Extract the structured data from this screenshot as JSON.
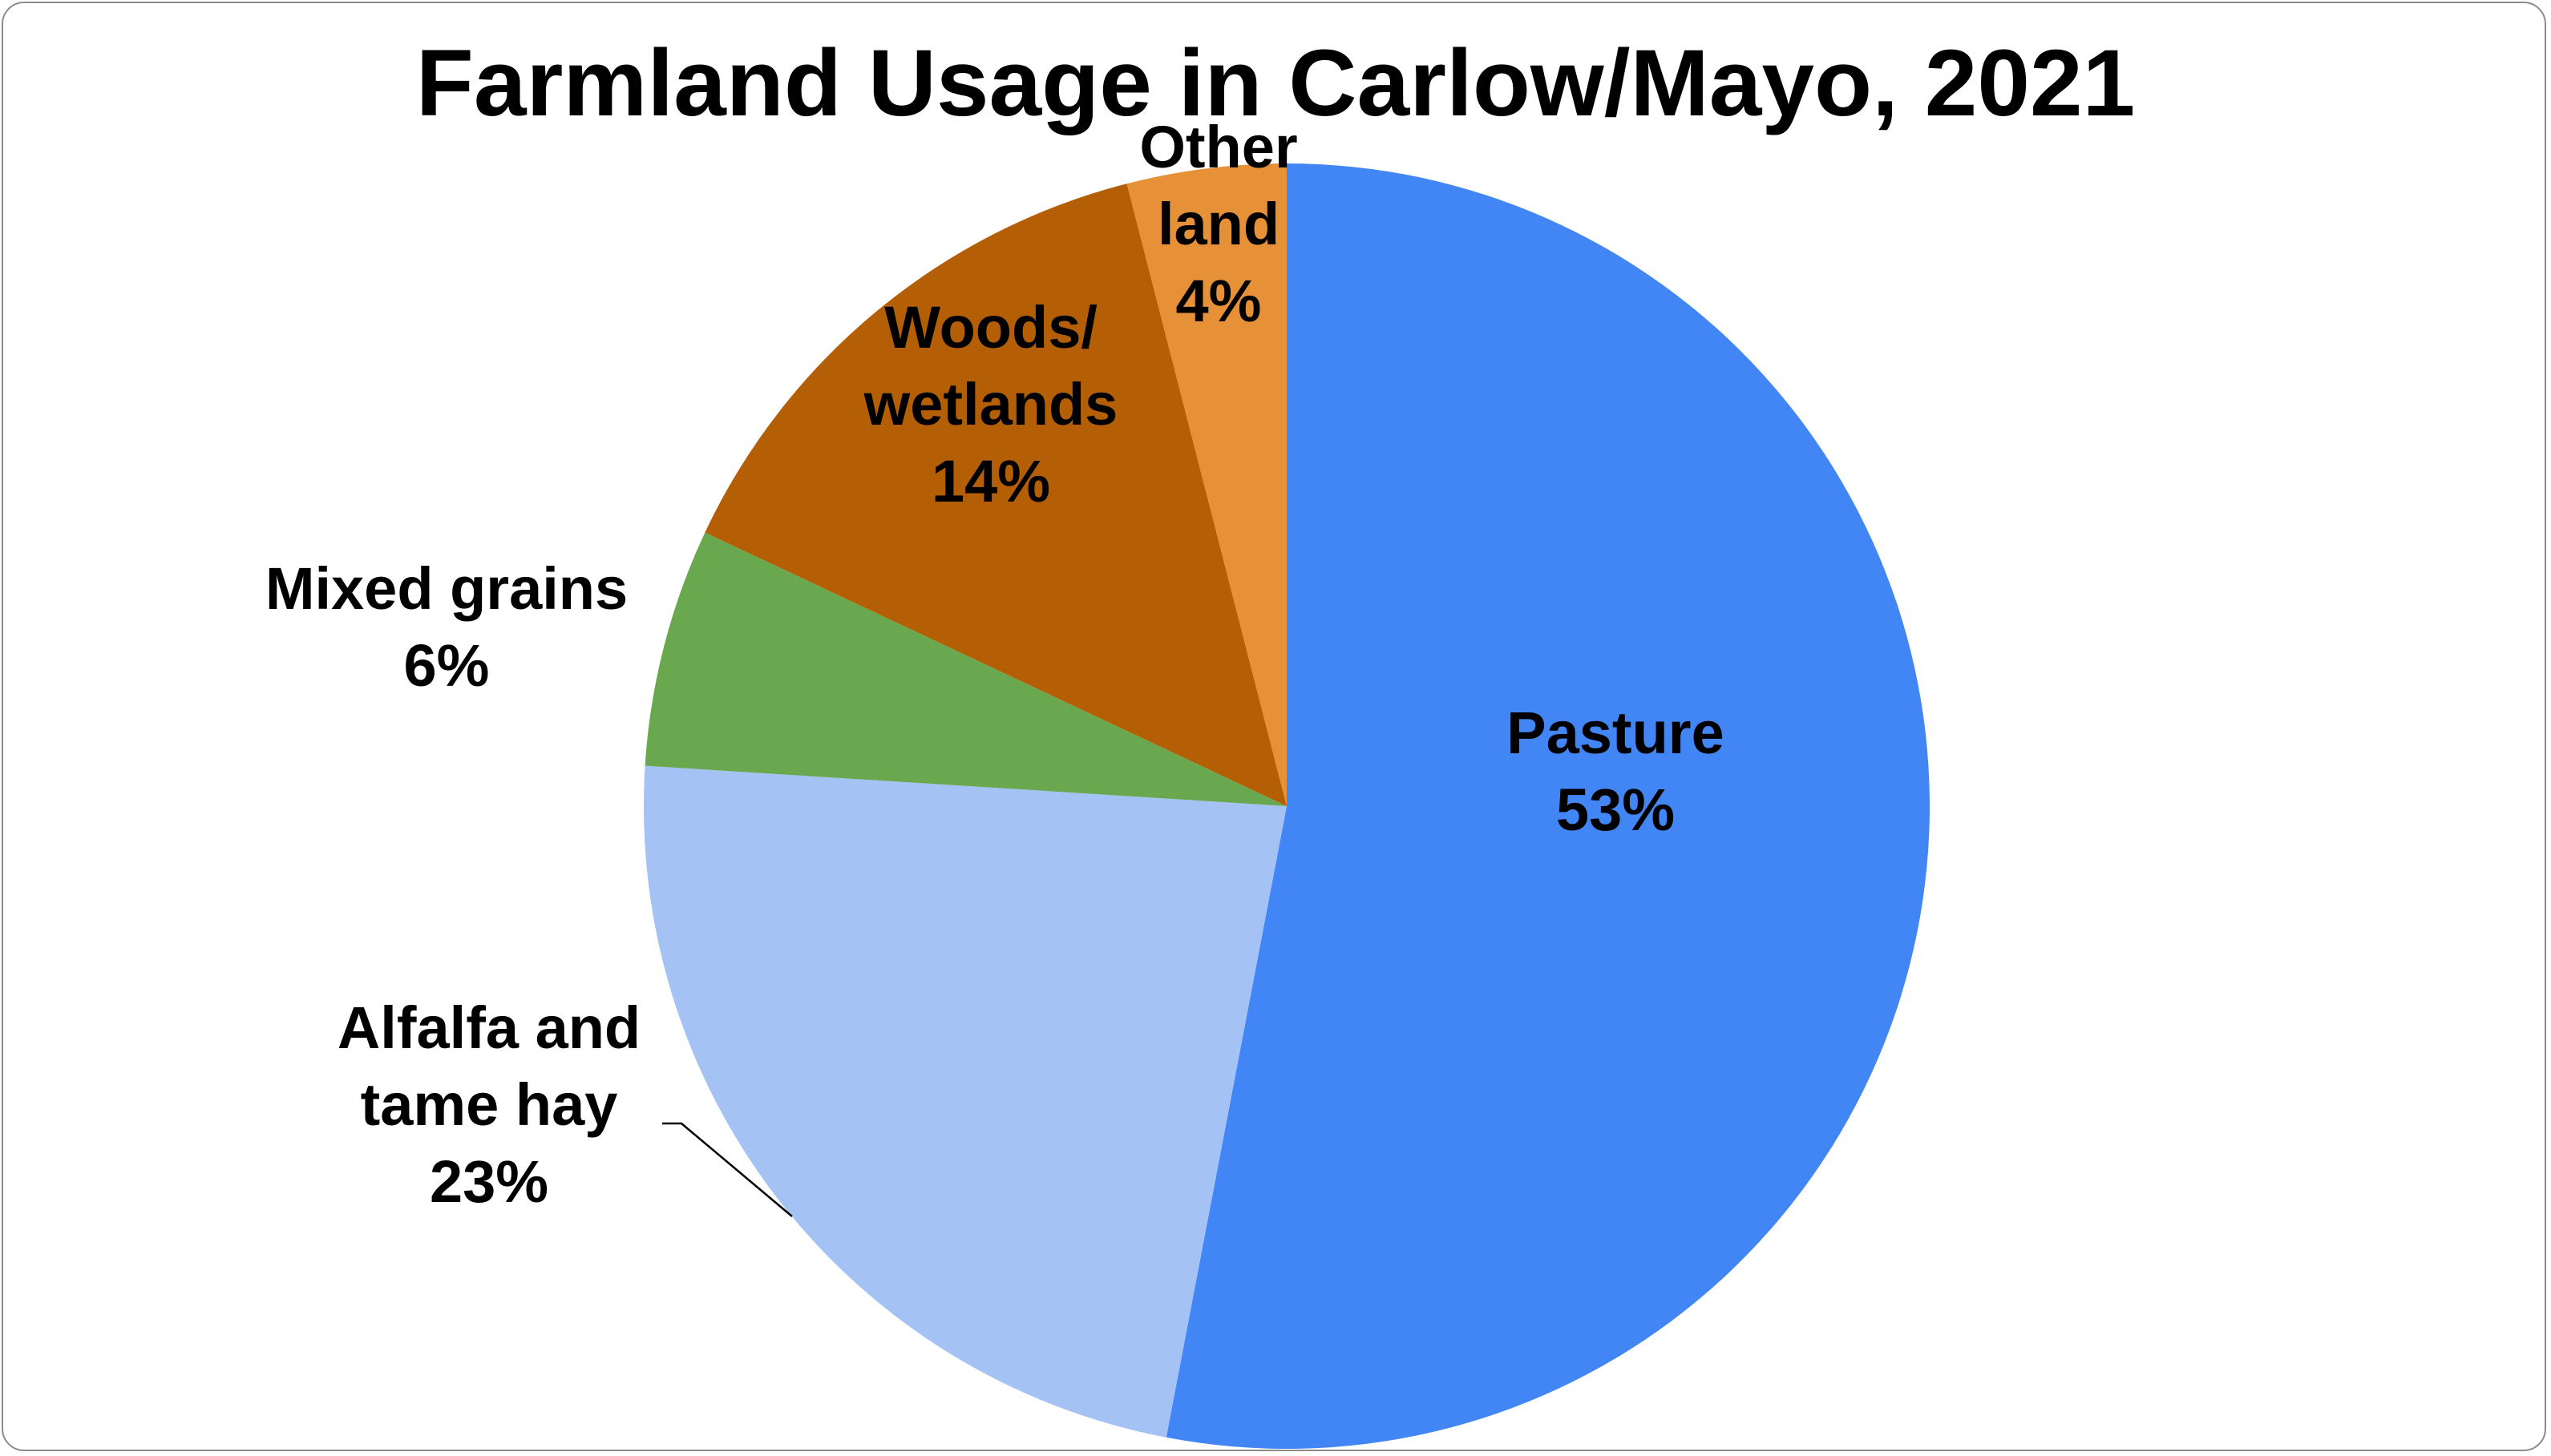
{
  "chart_data": {
    "type": "pie",
    "title": "Farmland Usage in Carlow/Mayo, 2021",
    "start_angle_deg": 0,
    "direction": "clockwise",
    "slices": [
      {
        "key": "pasture",
        "label_lines": [
          "Pasture",
          "53%"
        ],
        "value": 53,
        "color": "#4285F4"
      },
      {
        "key": "alfalfa",
        "label_lines": [
          "Alfalfa and",
          "tame hay",
          "23%"
        ],
        "value": 23,
        "color": "#A4C2F4"
      },
      {
        "key": "mixed-grains",
        "label_lines": [
          "Mixed grains",
          "6%"
        ],
        "value": 6,
        "color": "#6AA84F"
      },
      {
        "key": "woods-wetlands",
        "label_lines": [
          "Woods/",
          "wetlands",
          "14%"
        ],
        "value": 14,
        "color": "#B45F06"
      },
      {
        "key": "other-land",
        "label_lines": [
          "Other",
          "land",
          "4%"
        ],
        "value": 4,
        "color": "#E69138"
      }
    ],
    "legend": "none",
    "grid": false
  }
}
